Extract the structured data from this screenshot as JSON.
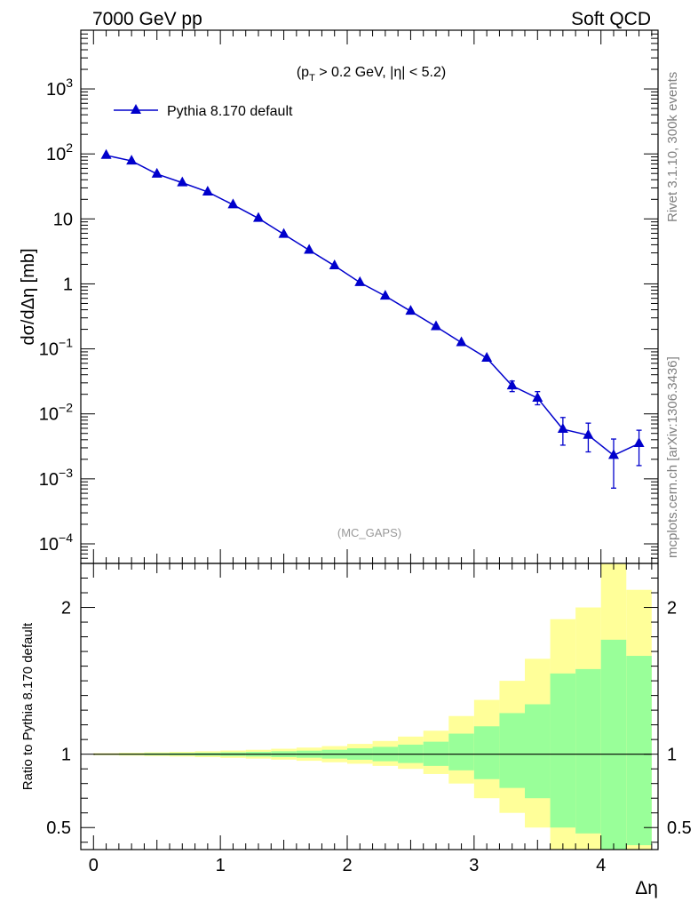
{
  "header": {
    "left": "7000 GeV pp",
    "right": "Soft QCD"
  },
  "side_text": {
    "rivet": "Rivet 3.1.10,  300k events",
    "mcplots": "mcplots.cern.ch [arXiv:1306.3436]"
  },
  "chart_data": [
    {
      "type": "line",
      "annotation": {
        "pre": "(p",
        "sub": "T",
        "post": " > 0.2 GeV, |η| < 5.2)"
      },
      "watermark": "(MC_GAPS)",
      "ylabel": "dσ/dΔη [mb]",
      "yscale": "log",
      "ylim": [
        5e-05,
        8000
      ],
      "xlim": [
        -0.1,
        4.45
      ],
      "legend_position": "top-left",
      "y_ticks": [
        {
          "v": 1000,
          "t": "10",
          "e": "3"
        },
        {
          "v": 100,
          "t": "10",
          "e": "2"
        },
        {
          "v": 10,
          "t": "10",
          "e": ""
        },
        {
          "v": 1,
          "t": "1",
          "e": ""
        },
        {
          "v": 0.1,
          "t": "10",
          "e": "−1"
        },
        {
          "v": 0.01,
          "t": "10",
          "e": "−2"
        },
        {
          "v": 0.001,
          "t": "10",
          "e": "−3"
        },
        {
          "v": 0.0001,
          "t": "10",
          "e": "−4"
        }
      ],
      "series": [
        {
          "name": "Pythia 8.170 default",
          "color": "#0000cc",
          "marker": "triangle",
          "points": [
            {
              "x": 0.1,
              "y": 95
            },
            {
              "x": 0.3,
              "y": 78
            },
            {
              "x": 0.5,
              "y": 49
            },
            {
              "x": 0.7,
              "y": 36
            },
            {
              "x": 0.9,
              "y": 26
            },
            {
              "x": 1.1,
              "y": 16.5
            },
            {
              "x": 1.3,
              "y": 10.2
            },
            {
              "x": 1.5,
              "y": 5.8
            },
            {
              "x": 1.7,
              "y": 3.3
            },
            {
              "x": 1.9,
              "y": 1.9
            },
            {
              "x": 2.1,
              "y": 1.05
            },
            {
              "x": 2.3,
              "y": 0.65
            },
            {
              "x": 2.5,
              "y": 0.38
            },
            {
              "x": 2.7,
              "y": 0.22
            },
            {
              "x": 2.9,
              "y": 0.125
            },
            {
              "x": 3.1,
              "y": 0.072
            },
            {
              "x": 3.3,
              "y": 0.027,
              "err": [
                0.022,
                0.032
              ]
            },
            {
              "x": 3.5,
              "y": 0.0175,
              "err": [
                0.0138,
                0.022
              ]
            },
            {
              "x": 3.7,
              "y": 0.0058,
              "err": [
                0.0033,
                0.0088
              ]
            },
            {
              "x": 3.9,
              "y": 0.0047,
              "err": [
                0.0026,
                0.0072
              ]
            },
            {
              "x": 4.1,
              "y": 0.0023,
              "err": [
                0.00072,
                0.0041
              ]
            },
            {
              "x": 4.3,
              "y": 0.0035,
              "err": [
                0.0016,
                0.0056
              ]
            }
          ]
        }
      ]
    },
    {
      "type": "area",
      "ylabel": "Ratio to Pythia 8.170 default",
      "xlabel": "Δη",
      "ylim": [
        0.35,
        2.3
      ],
      "xlim": [
        -0.1,
        4.45
      ],
      "reference": 1,
      "y_ticks": [
        {
          "v": 0.5,
          "t": "0.5"
        },
        {
          "v": 1,
          "t": "1"
        },
        {
          "v": 2,
          "t": "2"
        }
      ],
      "x_ticks": [
        {
          "v": 0,
          "t": "0"
        },
        {
          "v": 1,
          "t": "1"
        },
        {
          "v": 2,
          "t": "2"
        },
        {
          "v": 3,
          "t": "3"
        },
        {
          "v": 4,
          "t": "4"
        }
      ],
      "band_colors": {
        "outer": "#ffff99",
        "inner": "#99ff99",
        "line": "#000000"
      },
      "bins": [
        {
          "lo": 0.0,
          "hi": 0.2,
          "outer": [
            0.993,
            1.007
          ],
          "inner": [
            0.997,
            1.003
          ]
        },
        {
          "lo": 0.2,
          "hi": 0.4,
          "outer": [
            0.99,
            1.01
          ],
          "inner": [
            0.995,
            1.005
          ]
        },
        {
          "lo": 0.4,
          "hi": 0.6,
          "outer": [
            0.987,
            1.013
          ],
          "inner": [
            0.993,
            1.007
          ]
        },
        {
          "lo": 0.6,
          "hi": 0.8,
          "outer": [
            0.984,
            1.016
          ],
          "inner": [
            0.992,
            1.008
          ]
        },
        {
          "lo": 0.8,
          "hi": 1.0,
          "outer": [
            0.98,
            1.02
          ],
          "inner": [
            0.99,
            1.01
          ]
        },
        {
          "lo": 1.0,
          "hi": 1.2,
          "outer": [
            0.975,
            1.025
          ],
          "inner": [
            0.987,
            1.013
          ]
        },
        {
          "lo": 1.2,
          "hi": 1.4,
          "outer": [
            0.97,
            1.03
          ],
          "inner": [
            0.984,
            1.016
          ]
        },
        {
          "lo": 1.4,
          "hi": 1.6,
          "outer": [
            0.963,
            1.037
          ],
          "inner": [
            0.98,
            1.02
          ]
        },
        {
          "lo": 1.6,
          "hi": 1.8,
          "outer": [
            0.955,
            1.045
          ],
          "inner": [
            0.976,
            1.024
          ]
        },
        {
          "lo": 1.8,
          "hi": 2.0,
          "outer": [
            0.945,
            1.055
          ],
          "inner": [
            0.97,
            1.03
          ]
        },
        {
          "lo": 2.0,
          "hi": 2.2,
          "outer": [
            0.935,
            1.07
          ],
          "inner": [
            0.962,
            1.04
          ]
        },
        {
          "lo": 2.2,
          "hi": 2.4,
          "outer": [
            0.92,
            1.09
          ],
          "inner": [
            0.952,
            1.05
          ]
        },
        {
          "lo": 2.4,
          "hi": 2.6,
          "outer": [
            0.9,
            1.12
          ],
          "inner": [
            0.94,
            1.065
          ]
        },
        {
          "lo": 2.6,
          "hi": 2.8,
          "outer": [
            0.865,
            1.16
          ],
          "inner": [
            0.92,
            1.085
          ]
        },
        {
          "lo": 2.8,
          "hi": 3.0,
          "outer": [
            0.8,
            1.26
          ],
          "inner": [
            0.89,
            1.14
          ]
        },
        {
          "lo": 3.0,
          "hi": 3.2,
          "outer": [
            0.7,
            1.37
          ],
          "inner": [
            0.83,
            1.19
          ]
        },
        {
          "lo": 3.2,
          "hi": 3.4,
          "outer": [
            0.6,
            1.5
          ],
          "inner": [
            0.77,
            1.28
          ]
        },
        {
          "lo": 3.4,
          "hi": 3.6,
          "outer": [
            0.5,
            1.65
          ],
          "inner": [
            0.7,
            1.34
          ]
        },
        {
          "lo": 3.6,
          "hi": 3.8,
          "outer": [
            0.35,
            1.92
          ],
          "inner": [
            0.5,
            1.55
          ]
        },
        {
          "lo": 3.8,
          "hi": 4.0,
          "outer": [
            0.35,
            2.0
          ],
          "inner": [
            0.46,
            1.58
          ]
        },
        {
          "lo": 4.0,
          "hi": 4.2,
          "outer": [
            0.35,
            2.3
          ],
          "inner": [
            0.35,
            1.78
          ]
        },
        {
          "lo": 4.2,
          "hi": 4.4,
          "outer": [
            0.35,
            2.12
          ],
          "inner": [
            0.38,
            1.67
          ]
        }
      ]
    }
  ]
}
